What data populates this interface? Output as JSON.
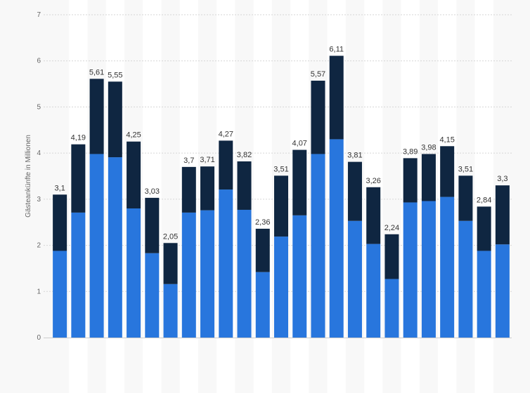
{
  "chart_data": {
    "type": "bar",
    "stacked": true,
    "ylabel": "Gästeankünfte in Millionen",
    "xlabel": "",
    "ylim": [
      0,
      7
    ],
    "yticks": [
      0,
      1,
      2,
      3,
      4,
      5,
      6,
      7
    ],
    "grid": true,
    "categories": [
      "",
      "",
      "",
      "",
      "",
      "",
      "",
      "",
      "",
      "",
      "",
      "",
      "",
      "",
      "",
      "",
      "",
      "",
      "",
      "",
      "",
      "",
      "",
      "",
      ""
    ],
    "series": [
      {
        "color": "#2876dd",
        "values": [
          1.88,
          2.71,
          3.98,
          3.91,
          2.8,
          1.83,
          1.16,
          2.71,
          2.76,
          3.21,
          2.77,
          1.42,
          2.19,
          2.65,
          3.98,
          4.3,
          2.53,
          2.03,
          1.27,
          2.93,
          2.96,
          3.05,
          2.53,
          1.88,
          2.02
        ]
      },
      {
        "color": "#0f2641",
        "values": [
          1.22,
          1.48,
          1.63,
          1.64,
          1.45,
          1.2,
          0.89,
          0.99,
          0.95,
          1.06,
          1.05,
          0.94,
          1.32,
          1.42,
          1.59,
          1.81,
          1.28,
          1.23,
          0.97,
          0.96,
          1.02,
          1.1,
          0.98,
          0.96,
          1.28
        ]
      }
    ],
    "totals": [
      3.1,
      4.19,
      5.61,
      5.55,
      4.25,
      3.03,
      2.05,
      3.7,
      3.71,
      4.27,
      3.82,
      2.36,
      3.51,
      4.07,
      5.57,
      6.11,
      3.81,
      3.26,
      2.24,
      3.89,
      3.98,
      4.15,
      3.51,
      2.84,
      3.3
    ],
    "total_labels": [
      "3,1",
      "4,19",
      "5,61",
      "5,55",
      "4,25",
      "3,03",
      "2,05",
      "3,7",
      "3,71",
      "4,27",
      "3,82",
      "2,36",
      "3,51",
      "4,07",
      "5,57",
      "6,11",
      "3,81",
      "3,26",
      "2,24",
      "3,89",
      "3,98",
      "4,15",
      "3,51",
      "2,84",
      "3,3"
    ]
  }
}
